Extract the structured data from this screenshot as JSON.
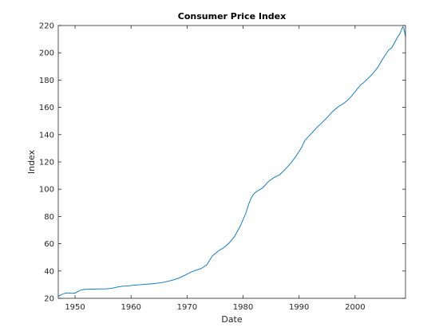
{
  "chart_data": {
    "type": "line",
    "title": "Consumer Price Index",
    "xlabel": "Date",
    "ylabel": "Index",
    "xlim": [
      1947,
      2009
    ],
    "ylim": [
      20,
      220
    ],
    "xticks": [
      1950,
      1960,
      1970,
      1980,
      1990,
      2000
    ],
    "yticks": [
      20,
      40,
      60,
      80,
      100,
      120,
      140,
      160,
      180,
      200,
      220
    ],
    "grid": false,
    "series": [
      {
        "color": "#0072bd",
        "x": [
          1947.0,
          1948.0,
          1948.6,
          1949.5,
          1950.0,
          1950.5,
          1951.0,
          1951.5,
          1952.5,
          1953.5,
          1954.5,
          1955.5,
          1956.5,
          1957.5,
          1958.5,
          1959.5,
          1960.5,
          1961.5,
          1962.5,
          1963.5,
          1964.5,
          1965.5,
          1966.5,
          1967.5,
          1968.5,
          1969.5,
          1970.5,
          1971.5,
          1972.5,
          1973.5,
          1974.0,
          1974.5,
          1975.5,
          1976.5,
          1977.5,
          1978.5,
          1979.5,
          1980.5,
          1981.0,
          1981.5,
          1982.0,
          1982.5,
          1983.5,
          1984.5,
          1985.5,
          1986.5,
          1987.5,
          1988.5,
          1989.5,
          1990.5,
          1991.0,
          1992.0,
          1993.0,
          1994.0,
          1995.0,
          1996.0,
          1997.0,
          1998.0,
          1999.0,
          2000.0,
          2001.0,
          2001.5,
          2002.0,
          2003.0,
          2004.0,
          2005.0,
          2006.0,
          2006.5,
          2007.0,
          2007.5,
          2008.0,
          2008.5,
          2008.7,
          2008.9,
          2009.0
        ],
        "y": [
          21.5,
          23.5,
          24.0,
          23.6,
          23.8,
          25.0,
          26.0,
          26.5,
          26.7,
          26.8,
          26.9,
          26.9,
          27.3,
          28.2,
          28.9,
          29.1,
          29.6,
          29.9,
          30.3,
          30.6,
          31.0,
          31.5,
          32.4,
          33.4,
          34.8,
          36.7,
          38.8,
          40.5,
          41.8,
          44.4,
          47.8,
          51.0,
          54.5,
          57.0,
          60.5,
          65.5,
          73.0,
          82.5,
          89.0,
          94.0,
          97.0,
          98.5,
          101.0,
          105.5,
          108.5,
          110.5,
          114.5,
          119.0,
          124.5,
          131.0,
          135.5,
          140.0,
          144.5,
          148.5,
          152.5,
          157.0,
          160.5,
          163.0,
          166.5,
          171.5,
          176.5,
          178.0,
          180.0,
          184.0,
          189.0,
          196.0,
          202.0,
          203.5,
          207.0,
          211.0,
          214.0,
          219.0,
          218.0,
          214.0,
          212.0
        ]
      }
    ]
  }
}
